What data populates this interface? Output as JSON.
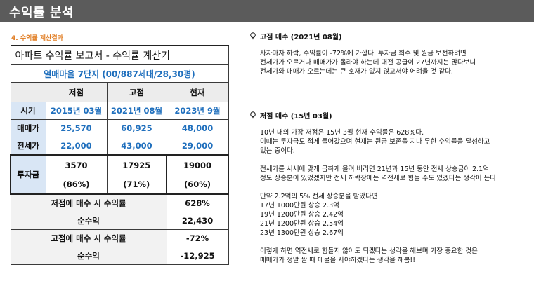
{
  "header": {
    "title": "수익률 분석"
  },
  "section_label": "4. 수익률 계산결과",
  "sheet": {
    "title": "아파트 수익률 보고서 - 수익률 계산기",
    "subtitle": "열매마을 7단지 (00/887세대/28,30평)",
    "col_headers": [
      "저점",
      "고점",
      "현재"
    ],
    "rows": [
      {
        "label": "시기",
        "values": [
          "2015년 03월",
          "2021년 08월",
          "2023년 9월"
        ]
      },
      {
        "label": "매매가",
        "values": [
          "25,570",
          "60,925",
          "48,000"
        ]
      },
      {
        "label": "전세가",
        "values": [
          "22,000",
          "43,000",
          "29,000"
        ]
      }
    ],
    "investment": {
      "label": "투자금",
      "amounts": [
        "3570",
        "17925",
        "19000"
      ],
      "ratios": [
        "(86%)",
        "(71%)",
        "(60%)"
      ]
    },
    "summary": [
      {
        "label": "저점에 매수 시 수익률",
        "value": "628%"
      },
      {
        "label": "순수익",
        "value": "22,430"
      },
      {
        "label": "고점에 매수 시 수익률",
        "value": "-72%"
      },
      {
        "label": "순수익",
        "value": "-12,925"
      }
    ]
  },
  "notes": [
    {
      "heading": "고점 매수 (2021년 08월)",
      "body": "사자마자 하락, 수익률이 -72%에 가깝다. 투자금 회수 및 원금 보전하려면\n전세가가 오르거나 매매가가 올라야 하는데 대전 공급이 27년까지는 많다보니\n전세가와 매매가 오르는데는 큰 호재가 있지 않고서야 어려울 것 같다."
    },
    {
      "heading": "저점  매수 (15년 03월)",
      "body": "10년 내의 가장 저점은 15년 3월  현재 수익률은 628%다.\n이때는 투자금도 적게 들어갔으며 현재는 원금 보존을 지나 무한 수익률을 달성하고\n있는 중이다.\n\n전세가를 시세에 맞게 급하게 올려 버리면 21년과 15년 동안 전세 상승금이 2.1억\n정도 상승분이 있었겠지만 전세 하락장에는 역전세로 힘들 수도 있겠다는 생각이 든다\n\n만약 2.2억의 5% 전세 상승분을 받았다면\n17년 1000만원 상승 2.3억\n19년 1200만원 상승 2.42억\n21년 1200만원 상승 2.54억\n23년 1300만원 상승 2.67억\n\n이렇게 하면 역전세로 힘들지 않아도 되겠다는 생각을 해보며 가장 중요한 것은\n매매가가 정말 쌀 때 매물을 사야하겠다는 생각을 해봄!!"
    }
  ]
}
